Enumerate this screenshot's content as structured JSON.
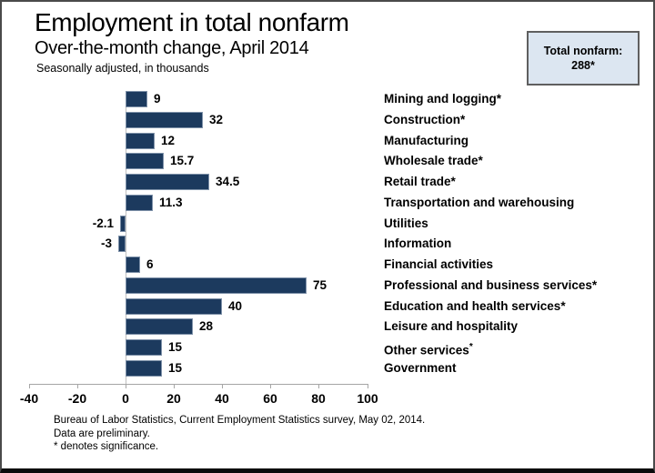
{
  "chart_data": {
    "type": "bar",
    "orientation": "horizontal",
    "title": "Employment in total nonfarm",
    "subtitle": "Over-the-month change, April 2014",
    "units_note": "Seasonally adjusted, in thousands",
    "categories": [
      "Mining and logging*",
      "Construction*",
      "Manufacturing",
      "Wholesale trade*",
      "Retail trade*",
      "Transportation and warehousing",
      "Utilities",
      "Information",
      "Financial activities",
      "Professional and business services*",
      "Education and health services*",
      "Leisure and hospitality",
      "Other services*",
      "Government"
    ],
    "superscript_star_indices": [
      12
    ],
    "values": [
      9,
      32,
      12,
      15.7,
      34.5,
      11.3,
      -2.1,
      -3,
      6,
      75,
      40,
      28,
      15,
      15
    ],
    "value_labels": [
      "9",
      "32",
      "12",
      "15.7",
      "34.5",
      "11.3",
      "-2.1",
      "-3",
      "6",
      "75",
      "40",
      "28",
      "15",
      "15"
    ],
    "xticks": [
      -40,
      -20,
      0,
      20,
      40,
      60,
      80,
      100
    ],
    "xlim": [
      -40,
      100
    ],
    "grid": false,
    "legend": null,
    "annotation_box": {
      "label": "Total nonfarm:",
      "value": "288*"
    },
    "source_lines": [
      "Bureau of Labor Statistics, Current Employment Statistics survey, May 02, 2014.",
      "Data are preliminary.",
      "* denotes significance."
    ]
  },
  "colors": {
    "bar_fill": "#1c3a5e",
    "bar_border": "#7d90a8",
    "axis_line": "#a6a6a6",
    "zero_line": "#bfbfbf",
    "callout_fill": "#dce6f1",
    "callout_border": "#5f5f5f",
    "frame": "#4a4a4a",
    "text": "#000000"
  }
}
